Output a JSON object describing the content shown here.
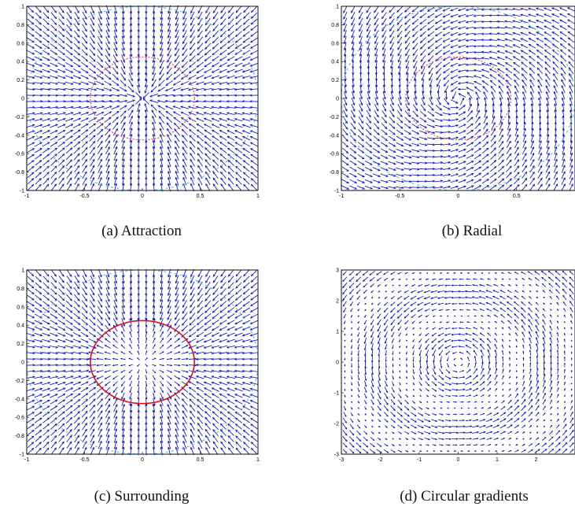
{
  "figure": {
    "captions": [
      "(a) Attraction",
      "(b) Radial",
      "(c) Surrounding",
      "(d) Circular gradients"
    ]
  },
  "colors": {
    "arrow": "#0000cc",
    "contour_outer": "#33bbdd",
    "contour_inner": "#dd3344",
    "contour_inner_strong": "#e01010"
  },
  "chart_data": [
    {
      "type": "quiver",
      "field": "attraction",
      "xlim": [
        -1,
        1
      ],
      "ylim": [
        -1,
        1
      ],
      "x_ticks": [
        -1,
        -0.5,
        0,
        0.5,
        1
      ],
      "x_tick_labels": [
        "-1",
        "-0.5",
        "0",
        "0.5",
        "1"
      ],
      "y_ticks": [
        1,
        0.8,
        0.6,
        0.4,
        0.2,
        0,
        -0.2,
        -0.4,
        -0.6,
        -0.8,
        -1
      ],
      "y_tick_labels": [
        "1",
        "0.8",
        "0.6",
        "0.4",
        "0.2",
        "0",
        "-0.2",
        "-0.4",
        "-0.6",
        "-0.8",
        "-1"
      ],
      "contours": [
        {
          "color_key": "contour_outer",
          "radius": 1.0
        },
        {
          "color_key": "contour_inner",
          "radius": 0.45
        }
      ],
      "grid": false
    },
    {
      "type": "quiver",
      "field": "radial",
      "xlim": [
        -1,
        1
      ],
      "ylim": [
        -1,
        1
      ],
      "x_ticks": [
        -1,
        -0.5,
        0,
        0.5
      ],
      "x_tick_labels": [
        "-1",
        "-0.5",
        "0",
        "0.5"
      ],
      "y_ticks": [
        1,
        0.8,
        0.6,
        0.4,
        0.2,
        0,
        -0.2,
        -0.4,
        -0.6,
        -0.8,
        -1
      ],
      "y_tick_labels": [
        "1",
        "0.8",
        "0.6",
        "0.4",
        "0.2",
        "0",
        "-0.2",
        "-0.4",
        "-0.6",
        "-0.8",
        "-1"
      ],
      "contours": [
        {
          "color_key": "contour_outer",
          "radius": 1.0
        },
        {
          "color_key": "contour_inner",
          "radius": 0.45
        }
      ],
      "grid": false
    },
    {
      "type": "quiver",
      "field": "surrounding",
      "xlim": [
        -1,
        1
      ],
      "ylim": [
        -1,
        1
      ],
      "x_ticks": [
        -1,
        -0.5,
        0,
        0.5,
        1
      ],
      "x_tick_labels": [
        "-1",
        "-0.5",
        "0",
        "0.5",
        "1"
      ],
      "y_ticks": [
        1,
        0.8,
        0.6,
        0.4,
        0.2,
        0,
        -0.2,
        -0.4,
        -0.6,
        -0.8,
        -1
      ],
      "y_tick_labels": [
        "1",
        "0.8",
        "0.6",
        "0.4",
        "0.2",
        "0",
        "-0.2",
        "-0.4",
        "-0.6",
        "-0.8",
        "-1"
      ],
      "contours": [
        {
          "color_key": "contour_outer",
          "radius": 1.0
        },
        {
          "color_key": "contour_inner_strong",
          "radius": 0.45
        }
      ],
      "grid": false
    },
    {
      "type": "quiver",
      "field": "circular_gradients",
      "xlim": [
        -3,
        3
      ],
      "ylim": [
        -3,
        3
      ],
      "x_ticks": [
        -3,
        -2,
        -1,
        0,
        1,
        2
      ],
      "x_tick_labels": [
        "-3",
        "-2",
        "-1",
        "0",
        "1",
        "2"
      ],
      "y_ticks": [
        3,
        2,
        1,
        0,
        -1,
        -2,
        -3
      ],
      "y_tick_labels": [
        "3",
        "2",
        "1",
        "0",
        "-1",
        "-2",
        "-3"
      ],
      "contours": [],
      "grid": false
    }
  ]
}
